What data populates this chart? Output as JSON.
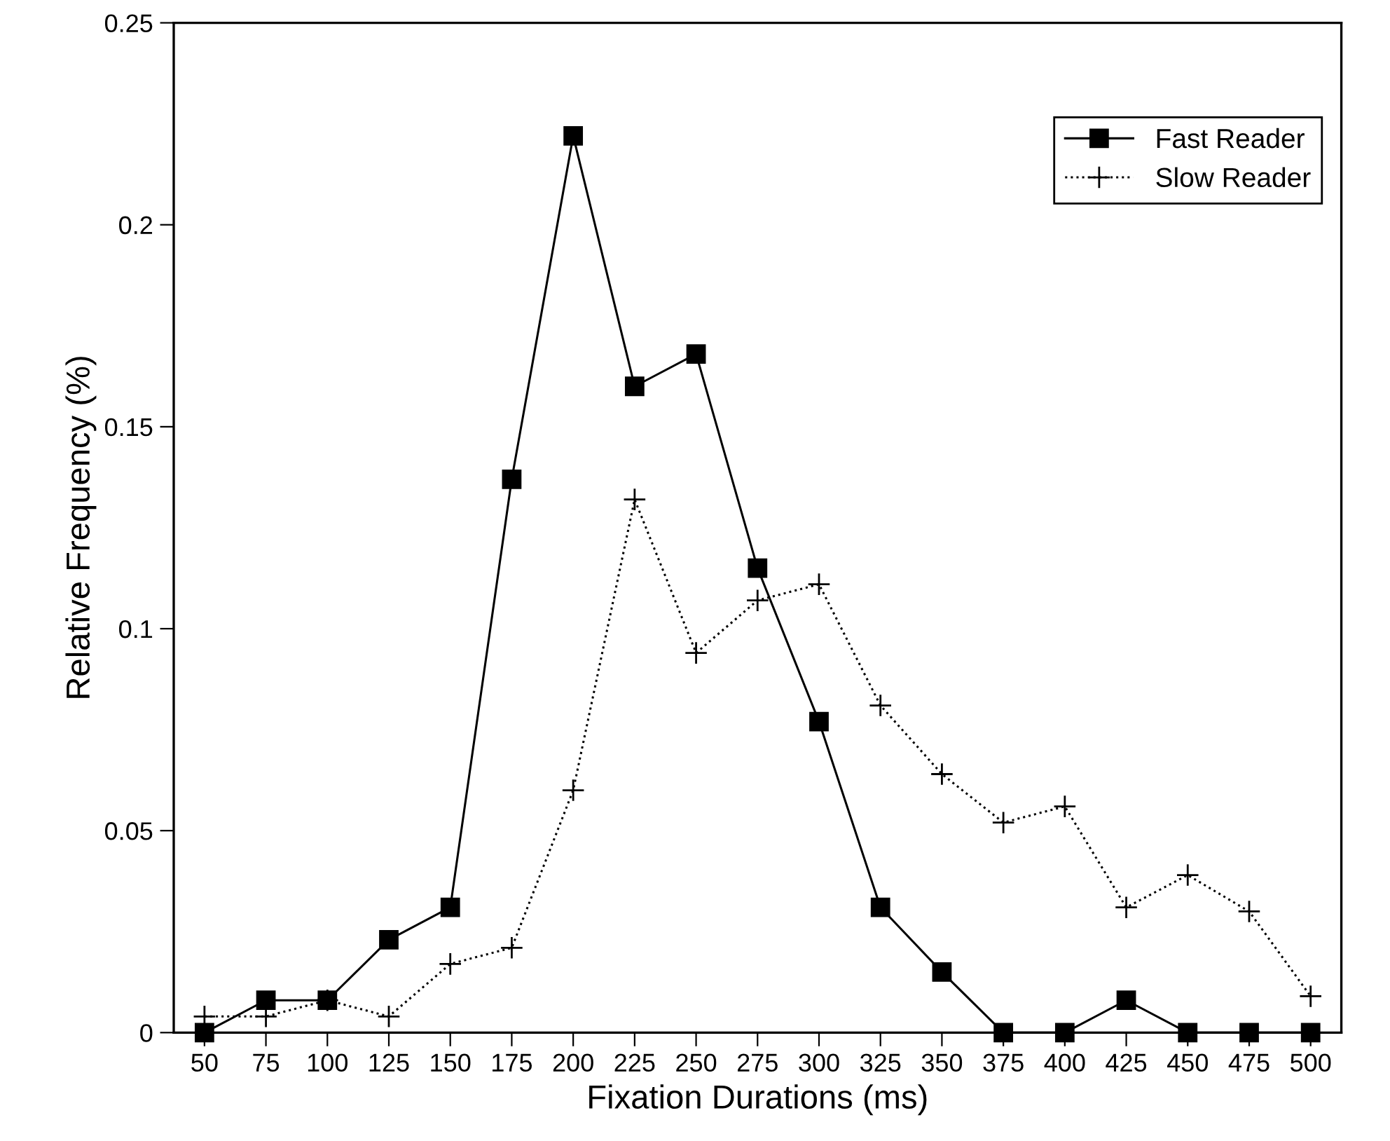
{
  "chart_data": {
    "type": "line",
    "xlabel": "Fixation Durations (ms)",
    "ylabel": "Relative Frequency (%)",
    "categories": [
      "50",
      "75",
      "100",
      "125",
      "150",
      "175",
      "200",
      "225",
      "250",
      "275",
      "300",
      "325",
      "350",
      "375",
      "400",
      "425",
      "450",
      "475",
      "500"
    ],
    "series": [
      {
        "name": "Fast Reader",
        "color": "#000000",
        "marker": "square",
        "line_style": "solid",
        "values": [
          0,
          0.008,
          0.008,
          0.023,
          0.031,
          0.137,
          0.222,
          0.16,
          0.168,
          0.115,
          0.077,
          0.031,
          0.015,
          0,
          0,
          0.008,
          0,
          0,
          0
        ]
      },
      {
        "name": "Slow Reader",
        "color": "#000000",
        "marker": "cross",
        "line_style": "dotted",
        "values": [
          0.004,
          0.004,
          0.008,
          0.004,
          0.017,
          0.021,
          0.06,
          0.132,
          0.094,
          0.107,
          0.111,
          0.081,
          0.064,
          0.052,
          0.056,
          0.031,
          0.039,
          0.03,
          0.009
        ]
      }
    ],
    "ylim": [
      0,
      0.25
    ],
    "yticks": [
      0,
      0.05,
      0.1,
      0.15,
      0.2,
      0.25
    ],
    "grid": false,
    "legend": "top right"
  }
}
